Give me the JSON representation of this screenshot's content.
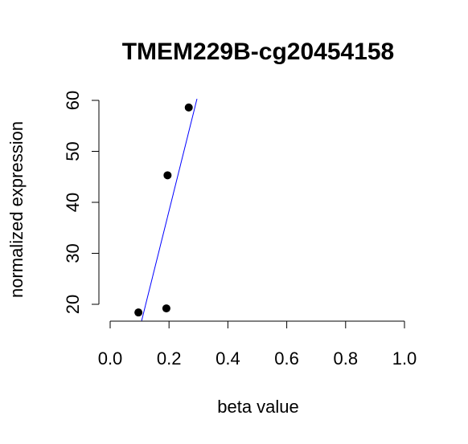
{
  "chart_data": {
    "type": "scatter",
    "title": "TMEM229B-cg20454158",
    "xlabel": "beta value",
    "ylabel": "normalized expression",
    "xlim": [
      0.0,
      1.0
    ],
    "ylim": [
      17,
      60
    ],
    "x_ticks": [
      "0.0",
      "0.2",
      "0.4",
      "0.6",
      "0.8",
      "1.0"
    ],
    "y_ticks": [
      "20",
      "30",
      "40",
      "50",
      "60"
    ],
    "points": [
      {
        "x": 0.096,
        "y": 18.4
      },
      {
        "x": 0.191,
        "y": 19.2
      },
      {
        "x": 0.195,
        "y": 45.3
      },
      {
        "x": 0.267,
        "y": 58.6
      }
    ],
    "fit_line": {
      "x": [
        0.107,
        0.295
      ],
      "y": [
        16.8,
        60.3
      ],
      "color": "#0000ff"
    },
    "point_color": "#000000",
    "grid": false
  }
}
